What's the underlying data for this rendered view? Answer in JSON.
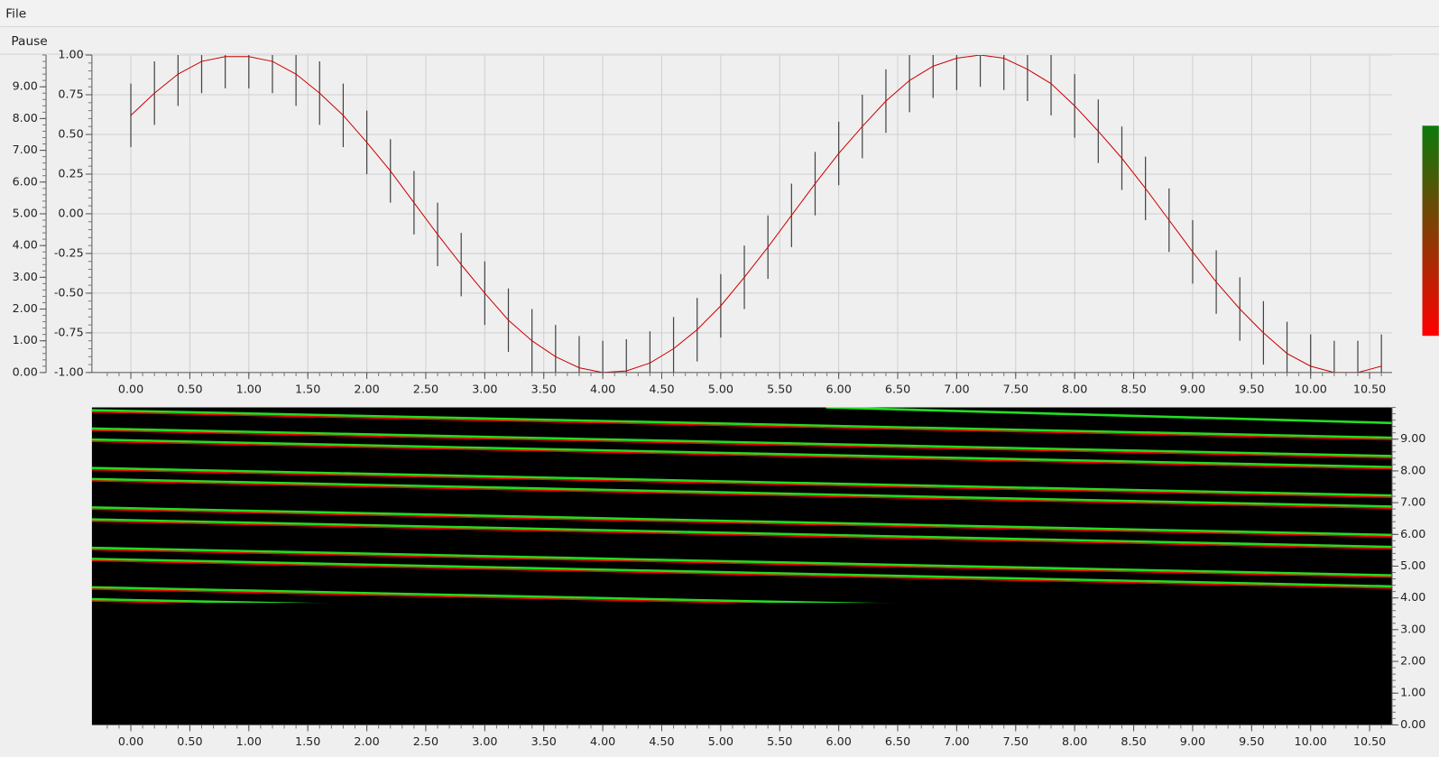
{
  "menu": [
    "File"
  ],
  "toolbar": [
    "Pause"
  ],
  "chart_data": [
    {
      "type": "errorbar",
      "line_color": "#cc0000",
      "bar_color": "#444444",
      "grid": true,
      "x": [
        0,
        0.2,
        0.4,
        0.6,
        0.8,
        1,
        1.2,
        1.4,
        1.6,
        1.8,
        2,
        2.2,
        2.4,
        2.6,
        2.8,
        3,
        3.2,
        3.4,
        3.6,
        3.8,
        4,
        4.2,
        4.4,
        4.6,
        4.8,
        5,
        5.2,
        5.4,
        5.6,
        5.8,
        6,
        6.2,
        6.4,
        6.6,
        6.8,
        7,
        7.2,
        7.4,
        7.6,
        7.8,
        8,
        8.2,
        8.4,
        8.6,
        8.8,
        9,
        9.2,
        9.4,
        9.6,
        9.8,
        10,
        10.2,
        10.4,
        10.6
      ],
      "values": [
        0.62,
        0.76,
        0.88,
        0.96,
        0.99,
        0.99,
        0.96,
        0.88,
        0.76,
        0.62,
        0.45,
        0.27,
        0.07,
        -0.13,
        -0.32,
        -0.5,
        -0.67,
        -0.8,
        -0.9,
        -0.97,
        -1,
        -0.99,
        -0.94,
        -0.85,
        -0.73,
        -0.58,
        -0.4,
        -0.21,
        -0.01,
        0.19,
        0.38,
        0.55,
        0.71,
        0.84,
        0.93,
        0.98,
        1,
        0.98,
        0.91,
        0.82,
        0.68,
        0.52,
        0.35,
        0.16,
        -0.04,
        -0.24,
        -0.43,
        -0.6,
        -0.75,
        -0.88,
        -0.96,
        -1,
        -1,
        -0.96
      ],
      "error": 0.2,
      "xlim": [
        -0.33,
        10.69
      ],
      "xticks": [
        {
          "value": 0,
          "label": "0.00"
        },
        {
          "value": 0.5,
          "label": "0.50"
        },
        {
          "value": 1,
          "label": "1.00"
        },
        {
          "value": 1.5,
          "label": "1.50"
        },
        {
          "value": 2,
          "label": "2.00"
        },
        {
          "value": 2.5,
          "label": "2.50"
        },
        {
          "value": 3,
          "label": "3.00"
        },
        {
          "value": 3.5,
          "label": "3.50"
        },
        {
          "value": 4,
          "label": "4.00"
        },
        {
          "value": 4.5,
          "label": "4.50"
        },
        {
          "value": 5,
          "label": "5.00"
        },
        {
          "value": 5.5,
          "label": "5.50"
        },
        {
          "value": 6,
          "label": "6.00"
        },
        {
          "value": 6.5,
          "label": "6.50"
        },
        {
          "value": 7,
          "label": "7.00"
        },
        {
          "value": 7.5,
          "label": "7.50"
        },
        {
          "value": 8,
          "label": "8.00"
        },
        {
          "value": 8.5,
          "label": "8.50"
        },
        {
          "value": 9,
          "label": "9.00"
        },
        {
          "value": 9.5,
          "label": "9.50"
        },
        {
          "value": 10,
          "label": "10.00"
        },
        {
          "value": 10.5,
          "label": "10.50"
        }
      ],
      "ylim": [
        -1,
        1
      ],
      "yticks": [
        {
          "value": -1,
          "label": "-1.00"
        },
        {
          "value": -0.75,
          "label": "-0.75"
        },
        {
          "value": -0.5,
          "label": "-0.50"
        },
        {
          "value": -0.25,
          "label": "-0.25"
        },
        {
          "value": 0,
          "label": "0.00"
        },
        {
          "value": 0.25,
          "label": "0.25"
        },
        {
          "value": 0.5,
          "label": "0.50"
        },
        {
          "value": 0.75,
          "label": "0.75"
        },
        {
          "value": 1,
          "label": "1.00"
        }
      ],
      "y2lim": [
        0,
        10
      ],
      "y2ticks": [
        {
          "value": 0,
          "label": "0.00"
        },
        {
          "value": 1,
          "label": "1.00"
        },
        {
          "value": 2,
          "label": "2.00"
        },
        {
          "value": 3,
          "label": "3.00"
        },
        {
          "value": 4,
          "label": "4.00"
        },
        {
          "value": 5,
          "label": "5.00"
        },
        {
          "value": 6,
          "label": "6.00"
        },
        {
          "value": 7,
          "label": "7.00"
        },
        {
          "value": 8,
          "label": "8.00"
        },
        {
          "value": 9,
          "label": "9.00"
        }
      ]
    },
    {
      "type": "heatmap",
      "colorscale": [
        "#0b7a0b",
        "#ff0000"
      ],
      "xlim": [
        -0.33,
        10.69
      ],
      "xticks": [
        {
          "value": 0,
          "label": "0.00"
        },
        {
          "value": 0.5,
          "label": "0.50"
        },
        {
          "value": 1,
          "label": "1.00"
        },
        {
          "value": 1.5,
          "label": "1.50"
        },
        {
          "value": 2,
          "label": "2.00"
        },
        {
          "value": 2.5,
          "label": "2.50"
        },
        {
          "value": 3,
          "label": "3.00"
        },
        {
          "value": 3.5,
          "label": "3.50"
        },
        {
          "value": 4,
          "label": "4.00"
        },
        {
          "value": 4.5,
          "label": "4.50"
        },
        {
          "value": 5,
          "label": "5.00"
        },
        {
          "value": 5.5,
          "label": "5.50"
        },
        {
          "value": 6,
          "label": "6.00"
        },
        {
          "value": 6.5,
          "label": "6.50"
        },
        {
          "value": 7,
          "label": "7.00"
        },
        {
          "value": 7.5,
          "label": "7.50"
        },
        {
          "value": 8,
          "label": "8.00"
        },
        {
          "value": 8.5,
          "label": "8.50"
        },
        {
          "value": 9,
          "label": "9.00"
        },
        {
          "value": 9.5,
          "label": "9.50"
        },
        {
          "value": 10,
          "label": "10.00"
        },
        {
          "value": 10.5,
          "label": "10.50"
        }
      ],
      "ylim": [
        0,
        10
      ],
      "yticks": [
        {
          "value": 0,
          "label": "0.00"
        },
        {
          "value": 1,
          "label": "1.00"
        },
        {
          "value": 2,
          "label": "2.00"
        },
        {
          "value": 3,
          "label": "3.00"
        },
        {
          "value": 4,
          "label": "4.00"
        },
        {
          "value": 5,
          "label": "5.00"
        },
        {
          "value": 6,
          "label": "6.00"
        },
        {
          "value": 7,
          "label": "7.00"
        },
        {
          "value": 8,
          "label": "8.00"
        },
        {
          "value": 9,
          "label": "9.00"
        }
      ]
    }
  ]
}
